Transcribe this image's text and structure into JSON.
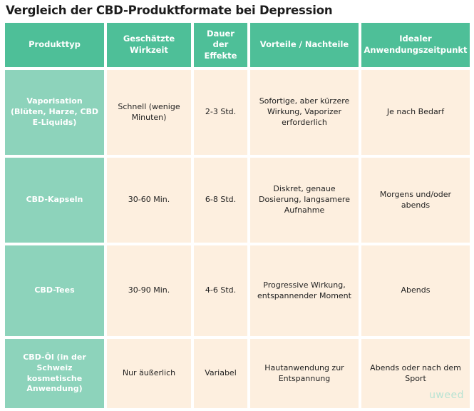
{
  "title": "Vergleich der CBD-Produktformate bei Depression",
  "headers": [
    "Produkttyp",
    "Geschätzte Wirkzeit",
    "Dauer der Effekte",
    "Vorteile / Nachteile",
    "Idealer Anwendungszeitpunkt"
  ],
  "rows": [
    {
      "type": "Vaporisation (Blüten, Harze, CBD E-Liquids)",
      "time": "Schnell (wenige Minuten)",
      "duration": "2-3 Std.",
      "pros_cons": "Sofortige, aber kürzere Wirkung, Vaporizer erforderlich",
      "ideal": "Je nach Bedarf"
    },
    {
      "type": "CBD-Kapseln",
      "time": "30-60 Min.",
      "duration": "6-8 Std.",
      "pros_cons": "Diskret, genaue Dosierung, langsamere Aufnahme",
      "ideal": "Morgens und/oder abends"
    },
    {
      "type": "CBD-Tees",
      "time": "30-90 Min.",
      "duration": "4-6 Std.",
      "pros_cons": "Progressive Wirkung, entspannender Moment",
      "ideal": "Abends"
    },
    {
      "type": "CBD-Öl (in der Schweiz kosmetische Anwendung)",
      "time": "Nur äußerlich",
      "duration": "Variabel",
      "pros_cons": "Hautanwendung zur Entspannung",
      "ideal": "Abends oder nach dem Sport"
    }
  ],
  "logo": "uweed",
  "colors": {
    "header_bg": "#4ebf98",
    "rowhead_bg": "#8dd3bb",
    "cell_bg": "#fdefdf"
  }
}
